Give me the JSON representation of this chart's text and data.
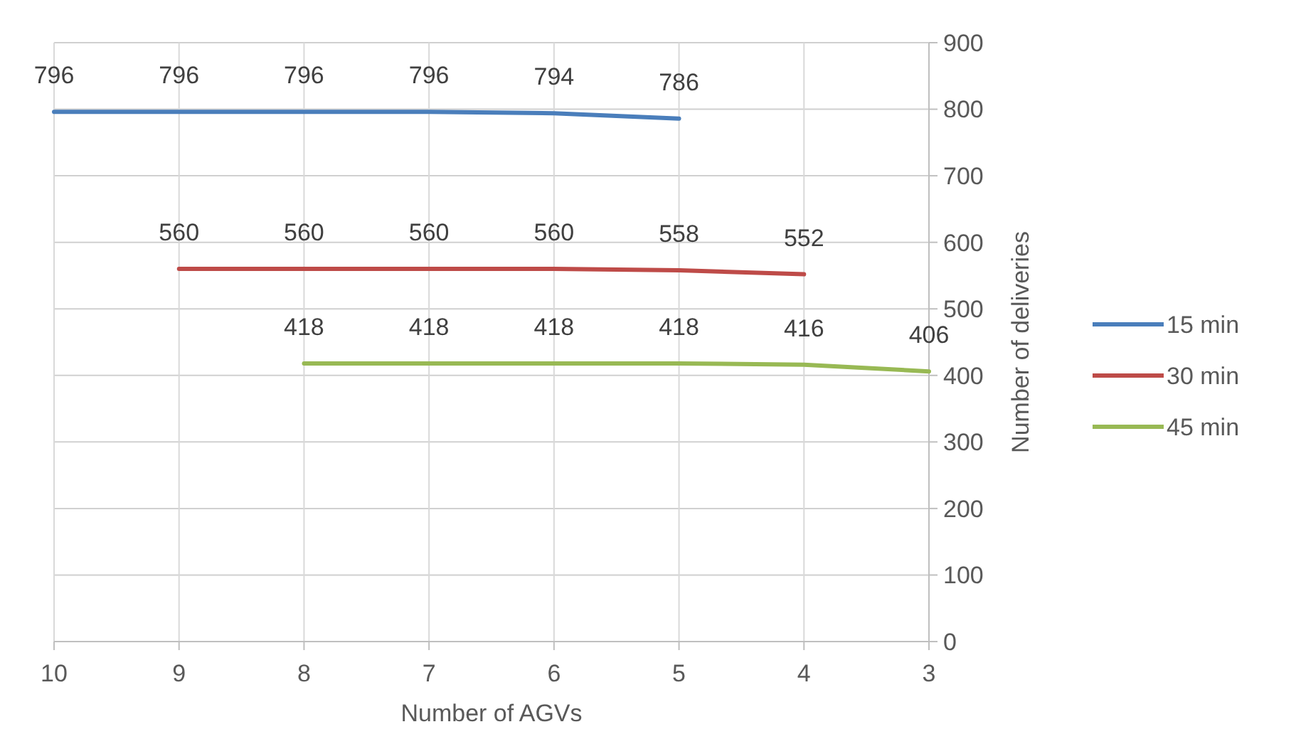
{
  "chart_data": {
    "type": "line",
    "xlabel": "Number of AGVs",
    "ylabel": "Number of deliveries",
    "categories": [
      "10",
      "9",
      "8",
      "7",
      "6",
      "5",
      "4",
      "3"
    ],
    "series": [
      {
        "name": "15 min",
        "color": "#4a7ebb",
        "values": [
          796,
          796,
          796,
          796,
          794,
          786,
          null,
          null
        ]
      },
      {
        "name": "30 min",
        "color": "#be4b48",
        "values": [
          null,
          560,
          560,
          560,
          560,
          558,
          552,
          null
        ]
      },
      {
        "name": "45 min",
        "color": "#98b954",
        "values": [
          null,
          null,
          418,
          418,
          418,
          418,
          416,
          406
        ]
      }
    ],
    "ylim": [
      0,
      900
    ],
    "yticks": [
      0,
      100,
      200,
      300,
      400,
      500,
      600,
      700,
      800,
      900
    ],
    "grid": true,
    "data_labels": true,
    "legend": "right",
    "marker": "none",
    "line_style": "solid"
  }
}
